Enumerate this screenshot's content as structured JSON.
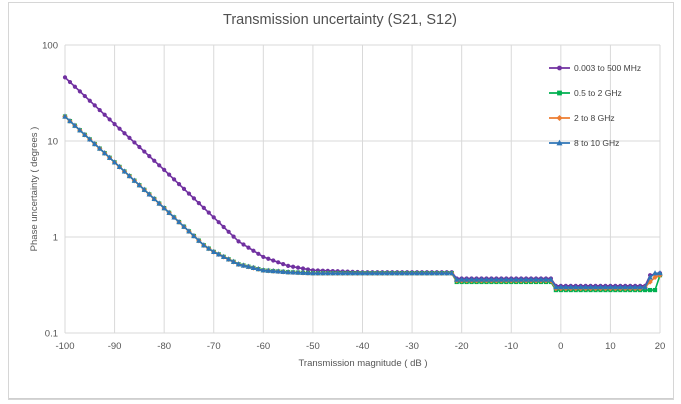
{
  "chart_data": {
    "type": "line",
    "title": "Transmission uncertainty (S21, S12)",
    "xlabel": "Transmission magnitude ( dB )",
    "ylabel": "Phase uncertainty ( degrees )",
    "xlim": [
      -100,
      20
    ],
    "ylim": [
      0.1,
      100
    ],
    "yscale": "log",
    "x_ticks": [
      "-100",
      "-90",
      "-80",
      "-70",
      "-60",
      "-50",
      "-40",
      "-30",
      "-20",
      "-10",
      "0",
      "10",
      "20"
    ],
    "y_ticks": [
      "0.1",
      "1",
      "10",
      "100"
    ],
    "grid": true,
    "legend_position": "top-right",
    "series": [
      {
        "name": "0.003 to 500 MHz",
        "color": "#7030a0",
        "marker": "circle",
        "points": [
          [
            -100,
            46
          ],
          [
            -90,
            15
          ],
          [
            -80,
            5
          ],
          [
            -70,
            1.6
          ],
          [
            -65,
            0.9
          ],
          [
            -60,
            0.62
          ],
          [
            -55,
            0.5
          ],
          [
            -50,
            0.45
          ],
          [
            -40,
            0.43
          ],
          [
            -30,
            0.43
          ],
          [
            -22,
            0.43
          ],
          [
            -21,
            0.37
          ],
          [
            -10,
            0.37
          ],
          [
            -2,
            0.37
          ],
          [
            -1,
            0.31
          ],
          [
            10,
            0.31
          ],
          [
            17,
            0.31
          ],
          [
            18,
            0.4
          ],
          [
            20,
            0.42
          ]
        ]
      },
      {
        "name": "0.5 to 2 GHz",
        "color": "#00b050",
        "marker": "square",
        "points": [
          [
            -100,
            18
          ],
          [
            -90,
            6
          ],
          [
            -80,
            2
          ],
          [
            -72,
            0.82
          ],
          [
            -70,
            0.7
          ],
          [
            -65,
            0.52
          ],
          [
            -60,
            0.45
          ],
          [
            -55,
            0.43
          ],
          [
            -50,
            0.42
          ],
          [
            -40,
            0.42
          ],
          [
            -30,
            0.42
          ],
          [
            -22,
            0.42
          ],
          [
            -21,
            0.34
          ],
          [
            -10,
            0.34
          ],
          [
            -2,
            0.34
          ],
          [
            -1,
            0.28
          ],
          [
            10,
            0.28
          ],
          [
            18,
            0.28
          ],
          [
            19,
            0.28
          ],
          [
            20,
            0.4
          ]
        ]
      },
      {
        "name": "2 to 8 GHz",
        "color": "#ed7d31",
        "marker": "diamond",
        "points": [
          [
            -100,
            18
          ],
          [
            -90,
            6
          ],
          [
            -80,
            2
          ],
          [
            -72,
            0.82
          ],
          [
            -70,
            0.7
          ],
          [
            -65,
            0.52
          ],
          [
            -60,
            0.45
          ],
          [
            -55,
            0.43
          ],
          [
            -50,
            0.42
          ],
          [
            -40,
            0.42
          ],
          [
            -30,
            0.42
          ],
          [
            -22,
            0.42
          ],
          [
            -21,
            0.35
          ],
          [
            -10,
            0.35
          ],
          [
            -2,
            0.35
          ],
          [
            -1,
            0.29
          ],
          [
            10,
            0.29
          ],
          [
            16,
            0.29
          ],
          [
            17,
            0.3
          ],
          [
            18,
            0.34
          ],
          [
            19,
            0.38
          ],
          [
            20,
            0.4
          ]
        ]
      },
      {
        "name": "8 to 10 GHz",
        "color": "#2e75b6",
        "marker": "triangle",
        "points": [
          [
            -100,
            18
          ],
          [
            -90,
            6
          ],
          [
            -80,
            2
          ],
          [
            -72,
            0.82
          ],
          [
            -70,
            0.7
          ],
          [
            -65,
            0.52
          ],
          [
            -60,
            0.45
          ],
          [
            -55,
            0.43
          ],
          [
            -50,
            0.42
          ],
          [
            -40,
            0.42
          ],
          [
            -30,
            0.42
          ],
          [
            -22,
            0.42
          ],
          [
            -21,
            0.36
          ],
          [
            -10,
            0.36
          ],
          [
            -2,
            0.36
          ],
          [
            -1,
            0.3
          ],
          [
            10,
            0.3
          ],
          [
            17,
            0.3
          ],
          [
            18,
            0.38
          ],
          [
            19,
            0.42
          ],
          [
            20,
            0.42
          ]
        ]
      }
    ]
  }
}
